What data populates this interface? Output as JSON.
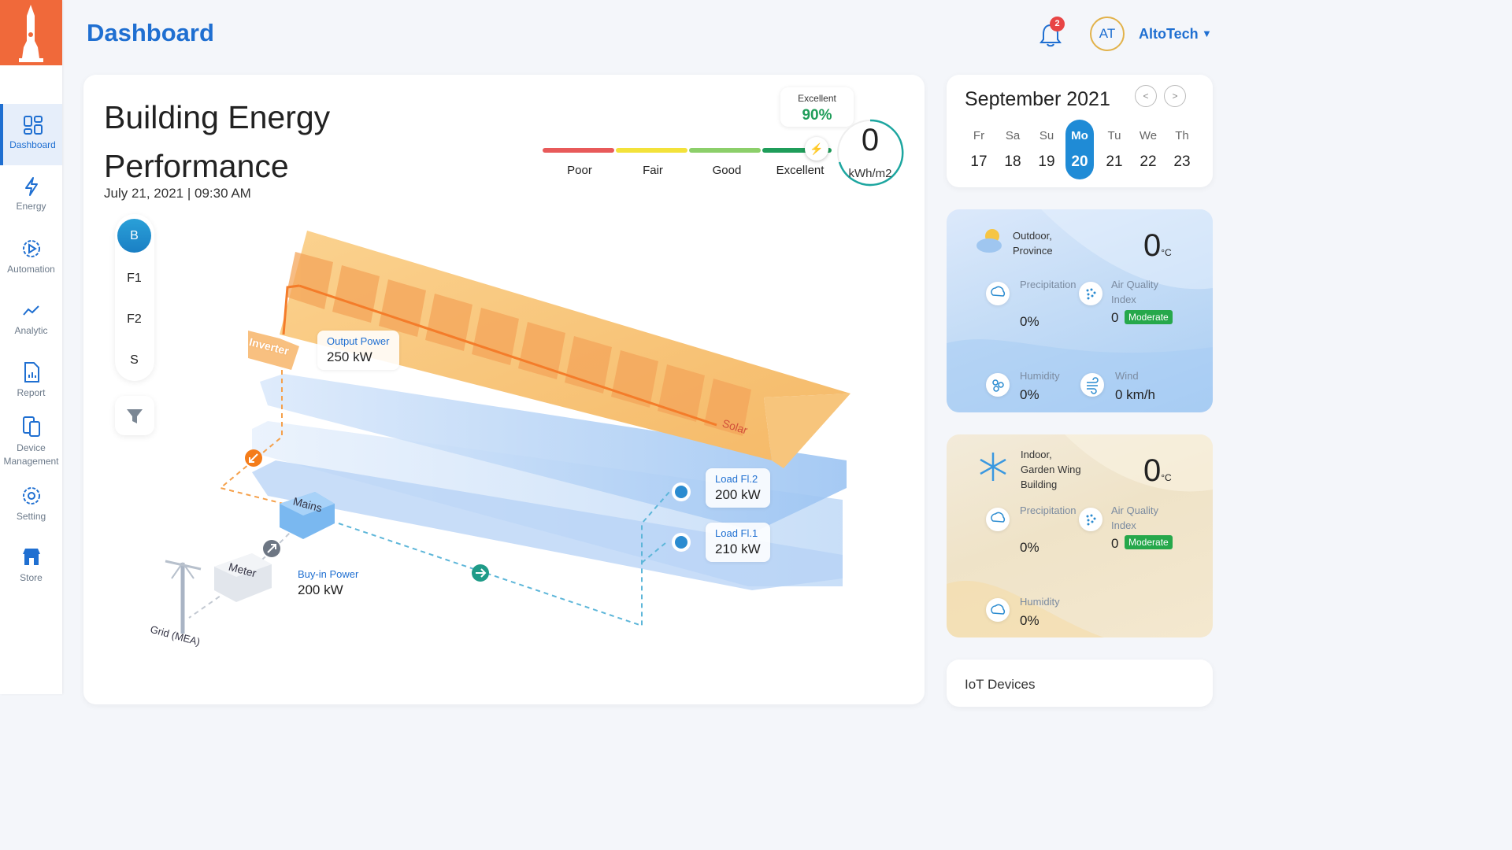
{
  "header": {
    "title": "Dashboard",
    "notification_count": "2",
    "avatar_initials": "AT",
    "user_name": "AltoTech"
  },
  "sidebar": {
    "logo_alt": "logo",
    "items": [
      {
        "label": "Dashboard",
        "icon": "dashboard-icon",
        "active": true
      },
      {
        "label": "Energy",
        "icon": "bolt-icon"
      },
      {
        "label": "Automation",
        "icon": "automation-gear-icon"
      },
      {
        "label": "Analytic",
        "icon": "analytic-line-icon"
      },
      {
        "label": "Report",
        "icon": "report-icon"
      },
      {
        "label": "Device",
        "label2": "Management",
        "icon": "device-icon"
      },
      {
        "label": "Setting",
        "icon": "gear-icon"
      },
      {
        "label": "Store",
        "icon": "store-icon"
      }
    ]
  },
  "main": {
    "title_line1": "Building Energy",
    "title_line2": "Performance",
    "datetime": "July 21, 2021 | 09:30 AM",
    "floors": [
      "B",
      "F1",
      "F2",
      "S"
    ],
    "selected_floor": "B",
    "scale": {
      "labels": [
        "Poor",
        "Fair",
        "Good",
        "Excellent"
      ],
      "rating_label": "Excellent",
      "rating_value": "90%"
    },
    "energy_value": "0",
    "energy_unit": "kWh/m2",
    "labels": {
      "inverter": "Inverter",
      "solar": "Solar",
      "mains": "Mains",
      "meter": "Meter",
      "grid": "Grid (MEA)"
    },
    "output_power": {
      "label": "Output Power",
      "value": "250 kW"
    },
    "buyin_power": {
      "label": "Buy-in Power",
      "value": "200 kW"
    },
    "load_fl2": {
      "label": "Load Fl.2",
      "value": "200 kW"
    },
    "load_fl1": {
      "label": "Load Fl.1",
      "value": "210 kW"
    }
  },
  "calendar": {
    "month": "September 2021",
    "prev": "<",
    "next": ">",
    "days": [
      {
        "name": "Fr",
        "date": "17"
      },
      {
        "name": "Sa",
        "date": "18"
      },
      {
        "name": "Su",
        "date": "19"
      },
      {
        "name": "Mo",
        "date": "20",
        "selected": true
      },
      {
        "name": "Tu",
        "date": "21"
      },
      {
        "name": "We",
        "date": "22"
      },
      {
        "name": "Th",
        "date": "23"
      }
    ]
  },
  "weather_outdoor": {
    "loc1": "Outdoor,",
    "loc2": "Province",
    "temp": "0",
    "temp_unit": "°C",
    "precip_label": "Precipitation",
    "precip_value": "0%",
    "aqi_label1": "Air Quality",
    "aqi_label2": "Index",
    "aqi_value": "0",
    "aqi_badge": "Moderate",
    "humidity_label": "Humidity",
    "humidity_value": "0%",
    "wind_label": "Wind",
    "wind_value": "0 km/h"
  },
  "weather_indoor": {
    "loc1": "Indoor,",
    "loc2": "Garden Wing",
    "loc3": "Building",
    "temp": "0",
    "temp_unit": "°C",
    "precip_label": "Precipitation",
    "precip_value": "0%",
    "aqi_label1": "Air Quality",
    "aqi_label2": "Index",
    "aqi_value": "0",
    "aqi_badge": "Moderate",
    "humidity_label": "Humidity",
    "humidity_value": "0%"
  },
  "iot": {
    "title": "IoT Devices"
  },
  "colors": {
    "accent": "#1f6fd1",
    "logo_bg": "#f0693a",
    "good_green": "#26a84b",
    "poor": "#e85a5a",
    "fair": "#f3e23a",
    "good": "#8ccf6a",
    "excellent": "#1f9d5a"
  }
}
